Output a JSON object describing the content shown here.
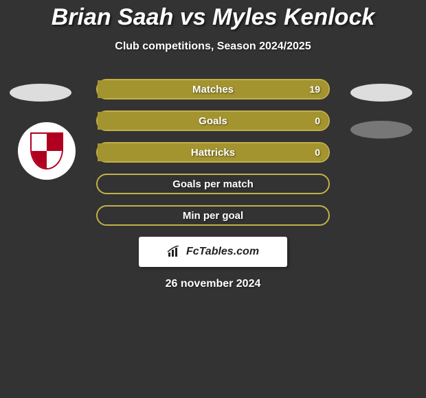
{
  "title": "Brian Saah vs Myles Kenlock",
  "subtitle": "Club competitions, Season 2024/2025",
  "date": "26 november 2024",
  "footer_brand": "FcTables.com",
  "colors": {
    "background": "#333333",
    "fill_primary": "#a3942f",
    "border_primary": "#c2b14a",
    "text": "#ffffff"
  },
  "bars": [
    {
      "label": "Matches",
      "left": "",
      "right": "19",
      "left_pct": 0,
      "right_pct": 100
    },
    {
      "label": "Goals",
      "left": "",
      "right": "0",
      "left_pct": 0,
      "right_pct": 100
    },
    {
      "label": "Hattricks",
      "left": "",
      "right": "0",
      "left_pct": 0,
      "right_pct": 100
    },
    {
      "label": "Goals per match",
      "left": "",
      "right": "",
      "left_pct": 0,
      "right_pct": 0
    },
    {
      "label": "Min per goal",
      "left": "",
      "right": "",
      "left_pct": 0,
      "right_pct": 0
    }
  ]
}
